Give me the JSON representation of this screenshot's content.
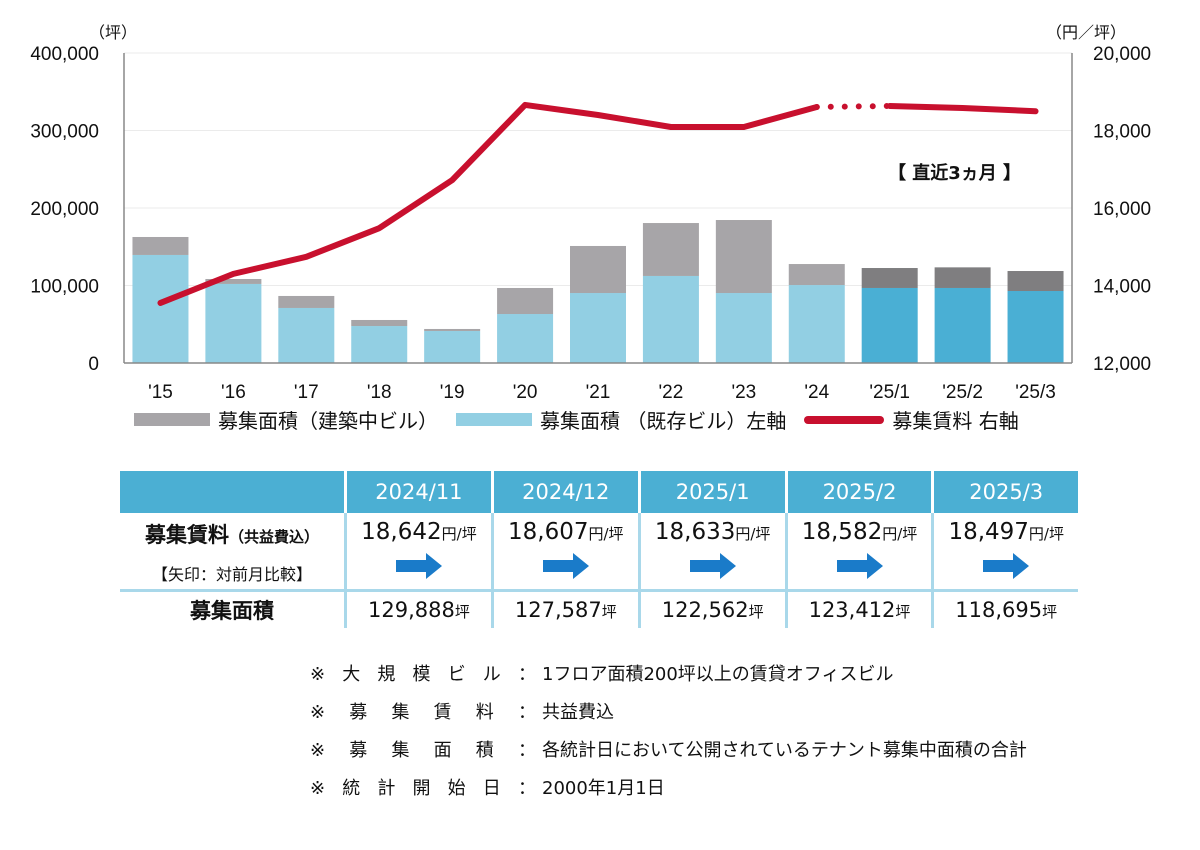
{
  "chart_data": {
    "type": "bar",
    "subtype": "stacked-bar-with-line-dual-axis",
    "categories": [
      "'15",
      "'16",
      "'17",
      "'18",
      "'19",
      "'20",
      "'21",
      "'22",
      "'23",
      "'24",
      "'25/1",
      "'25/2",
      "'25/3"
    ],
    "series": [
      {
        "name": "募集面積（既存ビル）左軸",
        "type": "bar",
        "axis": "left",
        "color": "#92cfe3",
        "recent_color": "#4aafd4",
        "values": [
          139400,
          102000,
          71000,
          47700,
          41300,
          63200,
          90300,
          112300,
          90300,
          100600,
          96800,
          96800,
          92900
        ]
      },
      {
        "name": "募集面積（建築中ビル）",
        "type": "bar",
        "axis": "left",
        "color": "#a7a5a8",
        "recent_color": "#7f7e80",
        "values": [
          23200,
          6400,
          15500,
          7800,
          2600,
          33600,
          60700,
          68300,
          94200,
          27100,
          25762,
          26612,
          25795
        ]
      },
      {
        "name": "募集賃料 右軸",
        "type": "line",
        "axis": "right",
        "color": "#c8102e",
        "values": [
          13550,
          14300,
          14740,
          15480,
          16720,
          18660,
          18400,
          18090,
          18090,
          18607,
          18633,
          18582,
          18497
        ],
        "dotted_between": [
          "'24",
          "'25/1"
        ]
      }
    ],
    "left_axis": {
      "unit": "（坪）",
      "ylim": [
        0,
        400000
      ],
      "ticks": [
        "0",
        "100,000",
        "200,000",
        "300,000",
        "400,000"
      ]
    },
    "right_axis": {
      "unit": "（円／坪）",
      "ylim": [
        12000,
        20000
      ],
      "ticks": [
        "12,000",
        "14,000",
        "16,000",
        "18,000",
        "20,000"
      ]
    },
    "annotation": "【 直近3ヵ月 】",
    "recent_count": 3,
    "grid": true,
    "legend_position": "bottom"
  },
  "legend": [
    {
      "label": "募集面積（建築中ビル）",
      "color": "#a7a5a8",
      "kind": "bar"
    },
    {
      "label": "募集面積 （既存ビル）左軸",
      "color": "#92cfe3",
      "kind": "bar"
    },
    {
      "label": "募集賃料 右軸",
      "color": "#c8102e",
      "kind": "line"
    }
  ],
  "table": {
    "columns": [
      "2024/11",
      "2024/12",
      "2025/1",
      "2025/2",
      "2025/3"
    ],
    "rent_row": {
      "label_main": "募集賃料",
      "label_note": "（共益費込）",
      "label_sub": "【矢印：対前月比較】",
      "unit": "円/坪",
      "values": [
        "18,642",
        "18,607",
        "18,633",
        "18,582",
        "18,497"
      ],
      "arrows": [
        "flat-right",
        "flat-right",
        "flat-right",
        "flat-right",
        "flat-right"
      ],
      "arrow_color": "#1a7bc9"
    },
    "area_row": {
      "label": "募集面積",
      "unit": "坪",
      "values": [
        "129,888",
        "127,587",
        "122,562",
        "123,412",
        "118,695"
      ]
    }
  },
  "notes": [
    {
      "mark": "※",
      "label": [
        "大",
        "規",
        "模",
        "ビ",
        "ル"
      ],
      "text": "1フロア面積200坪以上の賃貸オフィスビル"
    },
    {
      "mark": "※",
      "label": [
        "募",
        "集",
        "賃",
        "料"
      ],
      "text": "共益費込"
    },
    {
      "mark": "※",
      "label": [
        "募",
        "集",
        "面",
        "積"
      ],
      "text": "各統計日において公開されているテナント募集中面積の合計"
    },
    {
      "mark": "※",
      "label": [
        "統",
        "計",
        "開",
        "始",
        "日"
      ],
      "text": "2000年1月1日"
    }
  ],
  "notes_separator": "："
}
